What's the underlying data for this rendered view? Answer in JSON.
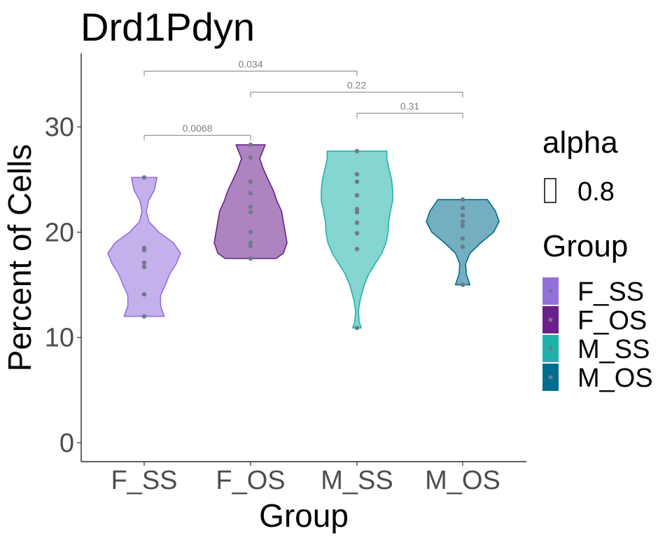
{
  "chart_data": {
    "type": "violin",
    "title": "Drd1Pdyn",
    "xlabel": "Group",
    "ylabel": "Percent of Cells",
    "categories": [
      "F_SS",
      "F_OS",
      "M_SS",
      "M_OS"
    ],
    "yticks": [
      "0",
      "10",
      "20",
      "30"
    ],
    "ylim": [
      -1.8,
      37
    ],
    "colors": [
      "#9370DB",
      "#6A1F8A",
      "#20B2AA",
      "#006C8E"
    ],
    "point_color": "#6e7b8b",
    "fill_alpha": 0.55,
    "series": [
      {
        "name": "F_SS",
        "points": [
          25.2,
          18.5,
          18.3,
          17.1,
          16.7,
          14.1,
          12.0
        ],
        "density": [
          [
            12.0,
            0.55
          ],
          [
            13.0,
            0.45
          ],
          [
            14.0,
            0.45
          ],
          [
            15.0,
            0.58
          ],
          [
            16.0,
            0.7
          ],
          [
            17.0,
            0.88
          ],
          [
            18.0,
            1.0
          ],
          [
            19.0,
            0.8
          ],
          [
            20.0,
            0.4
          ],
          [
            21.0,
            0.13
          ],
          [
            22.0,
            0.06
          ],
          [
            23.0,
            0.12
          ],
          [
            24.0,
            0.28
          ],
          [
            25.2,
            0.35
          ]
        ]
      },
      {
        "name": "F_OS",
        "points": [
          28.3,
          27.1,
          24.8,
          23.7,
          22.4,
          21.9,
          20.0,
          19.0,
          18.7,
          17.5
        ],
        "density": [
          [
            17.5,
            0.7
          ],
          [
            18.0,
            0.9
          ],
          [
            19.0,
            1.0
          ],
          [
            20.0,
            0.95
          ],
          [
            21.0,
            0.9
          ],
          [
            22.0,
            0.85
          ],
          [
            23.0,
            0.72
          ],
          [
            24.0,
            0.62
          ],
          [
            25.0,
            0.48
          ],
          [
            26.0,
            0.35
          ],
          [
            27.0,
            0.25
          ],
          [
            28.3,
            0.4
          ]
        ]
      },
      {
        "name": "M_SS",
        "points": [
          27.7,
          25.5,
          24.8,
          23.5,
          22.2,
          21.9,
          20.9,
          19.9,
          18.4,
          10.9
        ],
        "density": [
          [
            10.9,
            0.12
          ],
          [
            11.5,
            0.06
          ],
          [
            12.5,
            0.04
          ],
          [
            13.5,
            0.08
          ],
          [
            15.0,
            0.2
          ],
          [
            16.0,
            0.32
          ],
          [
            17.0,
            0.5
          ],
          [
            18.0,
            0.68
          ],
          [
            19.0,
            0.8
          ],
          [
            20.0,
            0.85
          ],
          [
            21.0,
            0.87
          ],
          [
            22.0,
            0.92
          ],
          [
            23.0,
            0.98
          ],
          [
            24.0,
            0.98
          ],
          [
            25.0,
            0.95
          ],
          [
            26.0,
            0.88
          ],
          [
            27.0,
            0.82
          ],
          [
            27.7,
            0.82
          ]
        ]
      },
      {
        "name": "M_OS",
        "points": [
          23.1,
          22.3,
          21.6,
          21.0,
          20.6,
          19.4,
          18.6,
          15.0
        ],
        "density": [
          [
            15.0,
            0.2
          ],
          [
            16.0,
            0.1
          ],
          [
            17.0,
            0.08
          ],
          [
            18.0,
            0.2
          ],
          [
            19.0,
            0.5
          ],
          [
            20.0,
            0.85
          ],
          [
            21.0,
            1.0
          ],
          [
            22.0,
            0.9
          ],
          [
            23.1,
            0.68
          ]
        ]
      }
    ],
    "comparisons": [
      {
        "from": "F_SS",
        "to": "M_SS",
        "label": "0.034",
        "y": 35.3,
        "tips": [
          34.8,
          34.8
        ]
      },
      {
        "from": "F_OS",
        "to": "M_OS",
        "label": "0.22",
        "y": 33.3,
        "tips": [
          32.8,
          32.8
        ]
      },
      {
        "from": "M_SS",
        "to": "M_OS",
        "label": "0.31",
        "y": 31.3,
        "tips": [
          30.8,
          30.8
        ]
      },
      {
        "from": "F_SS",
        "to": "F_OS",
        "label": "0.0068",
        "y": 29.2,
        "tips": [
          28.7,
          28.7
        ]
      }
    ],
    "legend": {
      "position": "right",
      "alpha_title": "alpha",
      "alpha_label": "0.8",
      "group_title": "Group",
      "items": [
        "F_SS",
        "F_OS",
        "M_SS",
        "M_OS"
      ]
    }
  }
}
